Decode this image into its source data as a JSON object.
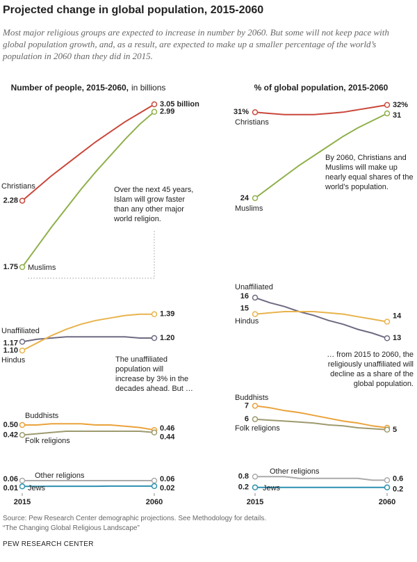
{
  "title": "Projected change in global population, 2015-2060",
  "subtitle": "Most major religious groups are expected to increase in number by 2060. But some will not keep pace with global population growth, and, as a result, are expected to make up a smaller percentage of the world’s population in 2060 than they did in 2015.",
  "chart_data": [
    {
      "type": "line",
      "title": "Number of people, 2015-2060,",
      "title_suffix": "in billions",
      "x": [
        2015,
        2020,
        2025,
        2030,
        2035,
        2040,
        2045,
        2050,
        2055,
        2060
      ],
      "xlim": [
        2015,
        2060
      ],
      "xticks": [
        2015,
        2060
      ],
      "groups": [
        {
          "ylim": [
            1.7,
            3.1
          ],
          "annotation": "Over the next 45 years, Islam will grow faster than any other major world religion.",
          "series": [
            {
              "name": "Christians",
              "color": "#c9473a",
              "values": [
                2.28,
                2.38,
                2.48,
                2.57,
                2.66,
                2.75,
                2.83,
                2.91,
                2.98,
                3.05
              ],
              "value_labels": [
                "2.28",
                null,
                null,
                null,
                null,
                null,
                null,
                null,
                null,
                "3.05 billion"
              ]
            },
            {
              "name": "Muslims",
              "color": "#8fb04b",
              "values": [
                1.75,
                1.91,
                2.07,
                2.22,
                2.37,
                2.51,
                2.64,
                2.77,
                2.89,
                2.99
              ],
              "value_labels": [
                "1.75",
                null,
                null,
                null,
                null,
                null,
                null,
                null,
                null,
                "2.99"
              ]
            }
          ]
        },
        {
          "ylim": [
            1.05,
            1.45
          ],
          "annotation": "The unaffiliated population will increase by 3% in the decades ahead. But …",
          "series": [
            {
              "name": "Unaffiliated",
              "color": "#6f6a82",
              "values": [
                1.17,
                1.19,
                1.2,
                1.21,
                1.21,
                1.21,
                1.21,
                1.21,
                1.2,
                1.2
              ],
              "value_labels": [
                "1.17",
                null,
                null,
                null,
                null,
                null,
                null,
                null,
                null,
                "1.20"
              ]
            },
            {
              "name": "Hindus",
              "color": "#e8b34c",
              "values": [
                1.1,
                1.16,
                1.22,
                1.27,
                1.31,
                1.34,
                1.36,
                1.38,
                1.39,
                1.39
              ],
              "value_labels": [
                "1.10",
                null,
                null,
                null,
                null,
                null,
                null,
                null,
                null,
                "1.39"
              ]
            }
          ]
        },
        {
          "ylim": [
            0.4,
            0.52
          ],
          "series": [
            {
              "name": "Buddhists",
              "color": "#eaa23a",
              "values": [
                0.5,
                0.5,
                0.51,
                0.51,
                0.51,
                0.5,
                0.5,
                0.49,
                0.48,
                0.46
              ],
              "value_labels": [
                "0.50",
                null,
                null,
                null,
                null,
                null,
                null,
                null,
                null,
                "0.46"
              ]
            },
            {
              "name": "Folk religions",
              "color": "#9d9a6e",
              "values": [
                0.42,
                0.43,
                0.44,
                0.45,
                0.45,
                0.45,
                0.45,
                0.45,
                0.45,
                0.44
              ],
              "value_labels": [
                "0.42",
                null,
                null,
                null,
                null,
                null,
                null,
                null,
                null,
                "0.44"
              ]
            }
          ]
        },
        {
          "ylim": [
            0,
            0.08
          ],
          "series": [
            {
              "name": "Other religions",
              "color": "#aaaaaa",
              "values": [
                0.06,
                0.06,
                0.06,
                0.06,
                0.06,
                0.06,
                0.06,
                0.06,
                0.06,
                0.06
              ],
              "value_labels": [
                "0.06",
                null,
                null,
                null,
                null,
                null,
                null,
                null,
                null,
                "0.06"
              ]
            },
            {
              "name": "Jews",
              "color": "#2c8fb0",
              "values": [
                0.014,
                0.014,
                0.015,
                0.015,
                0.015,
                0.015,
                0.016,
                0.016,
                0.016,
                0.016
              ],
              "value_labels": [
                "0.01",
                null,
                null,
                null,
                null,
                null,
                null,
                null,
                null,
                "0.02"
              ]
            }
          ]
        }
      ]
    },
    {
      "type": "line",
      "title": "% of global population, 2015-2060",
      "x": [
        2015,
        2020,
        2025,
        2030,
        2035,
        2040,
        2045,
        2050,
        2055,
        2060
      ],
      "xlim": [
        2015,
        2060
      ],
      "xticks": [
        2015,
        2060
      ],
      "groups": [
        {
          "ylim": [
            23,
            33
          ],
          "annotation": "By 2060, Christians and Muslims will make up nearly equal shares of the world’s population.",
          "series": [
            {
              "name": "Christians",
              "color": "#c9473a",
              "values": [
                31.2,
                31.1,
                31.0,
                31.0,
                31.0,
                31.1,
                31.2,
                31.4,
                31.6,
                31.8
              ],
              "value_labels": [
                "31%",
                null,
                null,
                null,
                null,
                null,
                null,
                null,
                null,
                "32%"
              ]
            },
            {
              "name": "Muslims",
              "color": "#8fb04b",
              "values": [
                24.1,
                25.0,
                25.9,
                26.8,
                27.6,
                28.4,
                29.2,
                29.9,
                30.5,
                31.1
              ],
              "value_labels": [
                "24",
                null,
                null,
                null,
                null,
                null,
                null,
                null,
                null,
                "31"
              ]
            }
          ]
        },
        {
          "ylim": [
            12.5,
            17
          ],
          "annotation": "… from 2015 to 2060, the religiously unaffiliated will decline as a share of the global population.",
          "series": [
            {
              "name": "Unaffiliated",
              "color": "#6f6a82",
              "values": [
                16.4,
                16.0,
                15.7,
                15.3,
                15.0,
                14.6,
                14.3,
                13.9,
                13.6,
                13.2
              ],
              "value_labels": [
                "16",
                null,
                null,
                null,
                null,
                null,
                null,
                null,
                null,
                "13"
              ]
            },
            {
              "name": "Hindus",
              "color": "#e8b34c",
              "values": [
                15.1,
                15.2,
                15.3,
                15.3,
                15.3,
                15.2,
                15.1,
                14.9,
                14.7,
                14.5
              ],
              "value_labels": [
                "15",
                null,
                null,
                null,
                null,
                null,
                null,
                null,
                null,
                "14"
              ]
            }
          ]
        },
        {
          "ylim": [
            4,
            7.5
          ],
          "series": [
            {
              "name": "Buddhists",
              "color": "#eaa23a",
              "values": [
                7.1,
                6.9,
                6.6,
                6.4,
                6.1,
                5.8,
                5.5,
                5.3,
                5.0,
                4.8
              ],
              "value_labels": [
                "7",
                null,
                null,
                null,
                null,
                null,
                null,
                null,
                null,
                "5"
              ]
            },
            {
              "name": "Folk religions",
              "color": "#9d9a6e",
              "values": [
                5.7,
                5.6,
                5.5,
                5.4,
                5.3,
                5.1,
                5.0,
                4.8,
                4.7,
                4.6
              ],
              "value_labels": [
                "6",
                null,
                null,
                null,
                null,
                null,
                null,
                null,
                null,
                null
              ]
            }
          ]
        },
        {
          "ylim": [
            0,
            1
          ],
          "series": [
            {
              "name": "Other religions",
              "color": "#aaaaaa",
              "values": [
                0.8,
                0.8,
                0.8,
                0.7,
                0.7,
                0.7,
                0.7,
                0.7,
                0.6,
                0.6
              ],
              "value_labels": [
                "0.8",
                null,
                null,
                null,
                null,
                null,
                null,
                null,
                null,
                "0.6"
              ]
            },
            {
              "name": "Jews",
              "color": "#2c8fb0",
              "values": [
                0.2,
                0.2,
                0.2,
                0.2,
                0.2,
                0.2,
                0.2,
                0.2,
                0.2,
                0.2
              ],
              "value_labels": [
                "0.2",
                null,
                null,
                null,
                null,
                null,
                null,
                null,
                null,
                "0.2"
              ]
            }
          ]
        }
      ]
    }
  ],
  "source": "Source: Pew Research Center demographic projections. See Methodology for details.",
  "note": "“The Changing Global Religious Landscape”",
  "credit": "PEW RESEARCH CENTER"
}
